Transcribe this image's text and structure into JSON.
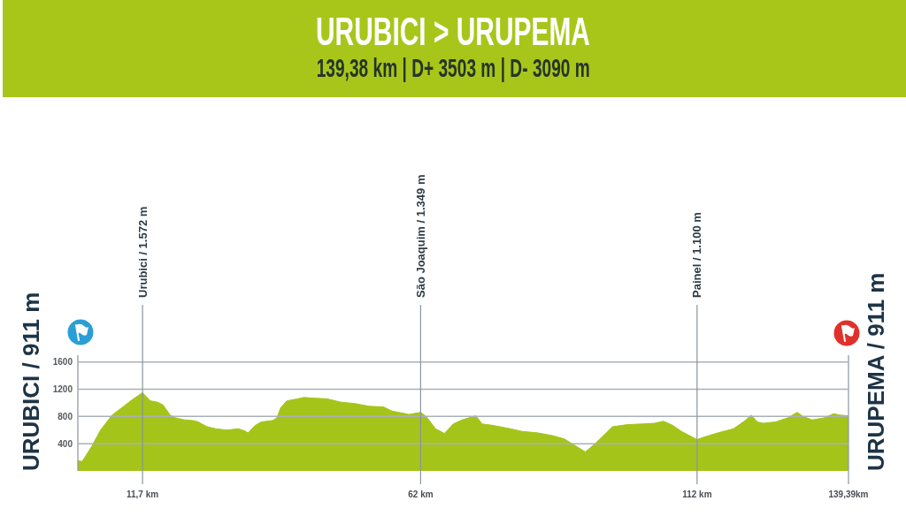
{
  "chart_data": {
    "type": "area",
    "title": "URUBICI > URUPEMA",
    "subtitle": "139,38 km | D+ 3503 m | D- 3090 m",
    "x": [
      0,
      0.8,
      2.5,
      4.1,
      6.2,
      8.3,
      9.9,
      11.7,
      13.1,
      14.4,
      15.4,
      16.7,
      17.7,
      19.3,
      20.8,
      21.8,
      22.4,
      23.4,
      24.9,
      27,
      29,
      30.1,
      30.8,
      32.1,
      33.2,
      35.2,
      36,
      36.7,
      37.8,
      39.8,
      40.9,
      42.4,
      45,
      47.6,
      50.1,
      52.7,
      55.3,
      56.8,
      59.9,
      62,
      63,
      64.7,
      66.3,
      67.9,
      69.5,
      72,
      73.1,
      75,
      78.2,
      80.4,
      83.1,
      85.8,
      88,
      89.6,
      91.8,
      93.4,
      95.6,
      96.7,
      99.4,
      102.1,
      104.3,
      105.9,
      107.6,
      109.2,
      112,
      113,
      115.8,
      118.6,
      120.7,
      121.8,
      122.9,
      124,
      126.2,
      128.4,
      130.1,
      131.2,
      132.8,
      135,
      136.7,
      137.8,
      139.39
    ],
    "values": [
      150,
      140,
      360,
      600,
      820,
      950,
      1050,
      1150,
      1030,
      1010,
      970,
      820,
      780,
      750,
      740,
      720,
      690,
      650,
      620,
      600,
      620,
      590,
      560,
      670,
      720,
      740,
      780,
      930,
      1030,
      1060,
      1080,
      1070,
      1060,
      1010,
      990,
      950,
      940,
      880,
      830,
      860,
      800,
      620,
      550,
      690,
      750,
      810,
      690,
      670,
      620,
      580,
      560,
      520,
      470,
      390,
      280,
      390,
      560,
      650,
      680,
      690,
      700,
      730,
      670,
      580,
      460,
      490,
      560,
      620,
      740,
      820,
      720,
      700,
      720,
      780,
      860,
      800,
      750,
      780,
      840,
      820,
      810
    ],
    "color": "#a4c41a",
    "xlim": [
      0,
      139.39
    ],
    "xticks": [
      {
        "value": 11.7,
        "label": "11,7 km"
      },
      {
        "value": 62,
        "label": "62 km"
      },
      {
        "value": 112,
        "label": "112 km"
      },
      {
        "value": 139.39,
        "label": "139,39km"
      }
    ],
    "ylim": [
      0,
      1700
    ],
    "yticks": [
      400,
      800,
      1200,
      1600
    ],
    "grid": "y",
    "ref_lines": [
      {
        "axis": "x",
        "value": 11.7,
        "label": "Urubici / 1.572 m",
        "color": "#8a949c"
      },
      {
        "axis": "x",
        "value": 62,
        "label": "São Joaquim / 1.349 m",
        "color": "#8a949c"
      },
      {
        "axis": "x",
        "value": 112,
        "label": "Painel / 1.100 m",
        "color": "#8a949c"
      }
    ],
    "annotations": [
      "URUBICI / 911 m",
      "URUPEMA / 911 m"
    ]
  }
}
